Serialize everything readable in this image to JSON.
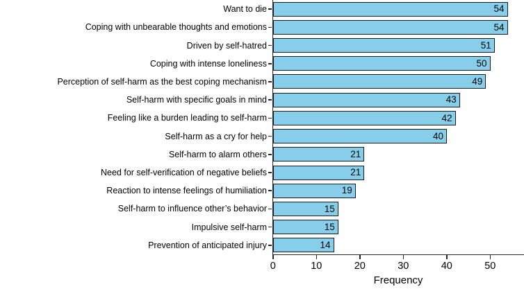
{
  "chart_data": {
    "type": "bar",
    "orientation": "horizontal",
    "xlabel": "Frequency",
    "categories": [
      "Want to die",
      "Coping with unbearable thoughts and emotions",
      "Driven by self-hatred",
      "Coping with intense loneliness",
      "Perception of self-harm as the best coping mechanism",
      "Self-harm with specific goals in mind",
      "Feeling like a burden leading to self-harm",
      "Self-harm as a cry for help",
      "Self-harm to alarm others",
      "Need for self-verification of negative beliefs",
      "Reaction to intense feelings of humiliation",
      "Self-harm to influence other’s behavior",
      "Impulsive self-harm",
      "Prevention of anticipated injury"
    ],
    "values": [
      54,
      54,
      51,
      50,
      49,
      43,
      42,
      40,
      21,
      21,
      19,
      15,
      15,
      14
    ],
    "xticks": [
      0,
      10,
      20,
      30,
      40,
      50
    ],
    "xlim": [
      0,
      56.6
    ],
    "grid": false,
    "value_labels_position": "inside-end",
    "bar_color": "#87CEEB",
    "bar_border_color": "#1a1a1a",
    "axis_color": "#262626",
    "text_color": "#000000"
  }
}
